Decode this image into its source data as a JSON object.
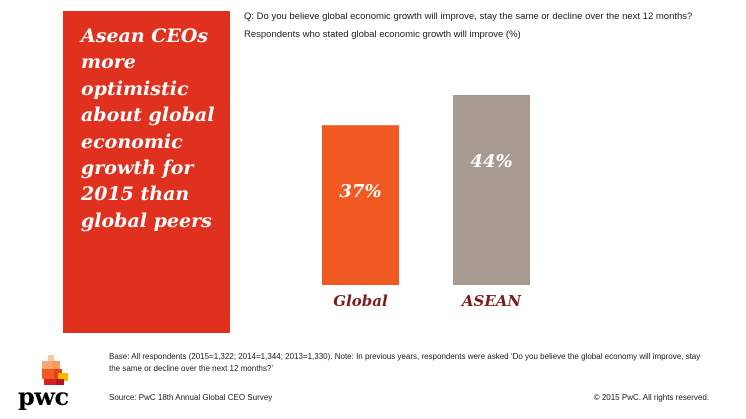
{
  "headline": "Asean CEOs more optimistic about global economic growth for 2015 than global peers",
  "question": "Q: Do you believe global economic growth will improve, stay the same or decline over the next 12 months?",
  "subtitle": "Respondents who stated global economic growth will improve (%)",
  "footnote": {
    "base": "Base: All respondents (2015=1,322; 2014=1,344; 2013=1,330). Note: In previous years, respondents were asked ‘Do you believe the global economy will improve, stay the same or decline over the next 12 months?’",
    "source": "Source: PwC 18th Annual Global CEO Survey",
    "copyright": "© 2015 PwC. All rights reserved."
  },
  "logo": {
    "text": "pwc"
  },
  "colors": {
    "panel": "#e0301e",
    "global_bar": "#f05a22",
    "asean_bar": "#a69a91",
    "category_label": "#7d1a1a",
    "value_label": "#ffffff"
  },
  "chart_data": {
    "type": "bar",
    "categories": [
      "Global",
      "ASEAN"
    ],
    "values": [
      37,
      44
    ],
    "value_labels": [
      "37%",
      "44%"
    ],
    "colors": [
      "#f05a22",
      "#a69a91"
    ],
    "ylim": [
      0,
      44
    ]
  }
}
